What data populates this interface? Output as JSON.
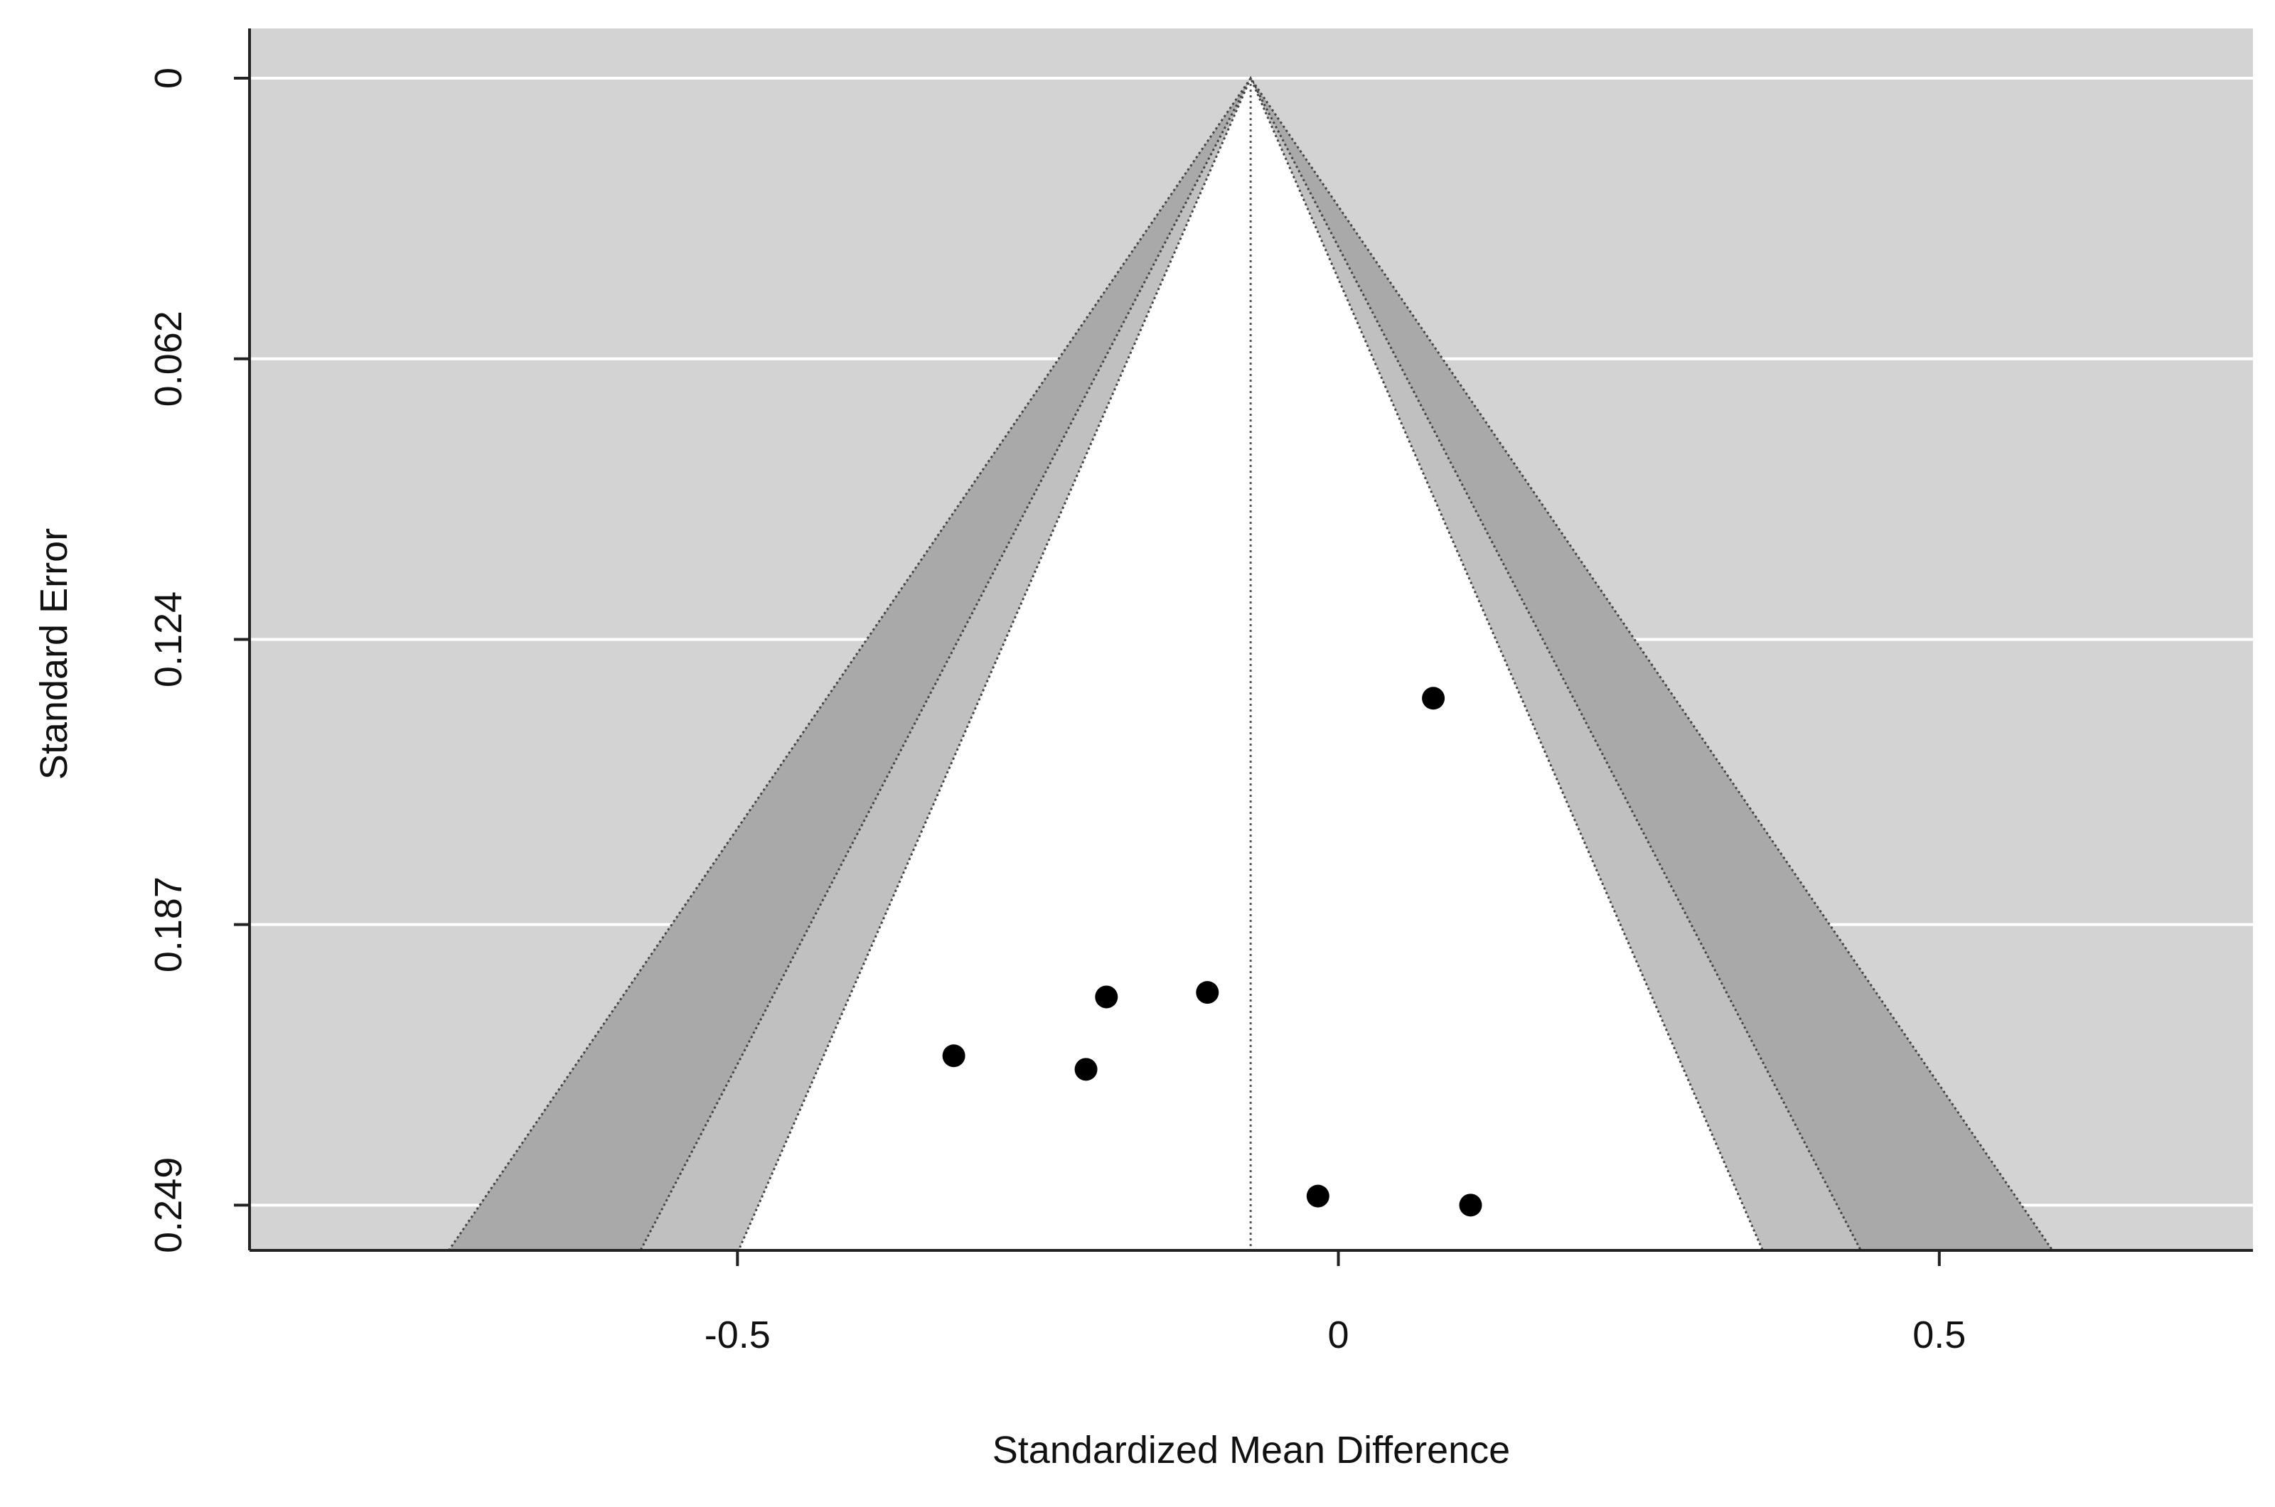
{
  "chart_data": {
    "type": "funnel",
    "x_label": "Standardized Mean Difference",
    "y_label": "Standard Error",
    "x": [
      0.079,
      -0.193,
      -0.109,
      -0.32,
      -0.21,
      -0.017,
      0.11
    ],
    "y": [
      0.137,
      0.203,
      0.202,
      0.216,
      0.219,
      0.247,
      0.249
    ],
    "point_color": "#000000",
    "center": -0.073,
    "contours": [
      {
        "z": 2.576,
        "color": "#a9a9a9"
      },
      {
        "z": 1.96,
        "color": "#c0c0c0"
      },
      {
        "z": 1.645,
        "color": "#ffffff"
      }
    ],
    "background": "#d3d3d3",
    "xlim": [
      -0.906,
      0.761
    ],
    "xticks": [
      -0.5,
      0,
      0.5
    ],
    "ylim": [
      -0.011,
      0.259
    ],
    "y_reversed": true,
    "yticks": [
      0,
      0.062,
      0.124,
      0.187,
      0.249
    ],
    "grid": true
  }
}
